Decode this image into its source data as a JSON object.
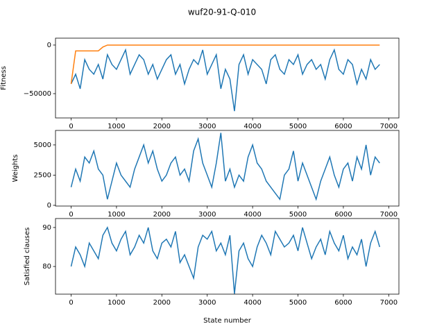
{
  "title": "wuf20-91-Q-010",
  "chart_data": [
    {
      "type": "line",
      "ylabel": "Fitness",
      "x": [
        0,
        100,
        200,
        300,
        400,
        500,
        600,
        700,
        800,
        900,
        1000,
        1100,
        1200,
        1300,
        1400,
        1500,
        1600,
        1700,
        1800,
        1900,
        2000,
        2100,
        2200,
        2300,
        2400,
        2500,
        2600,
        2700,
        2800,
        2900,
        3000,
        3100,
        3200,
        3300,
        3400,
        3500,
        3600,
        3700,
        3800,
        3900,
        4000,
        4100,
        4200,
        4300,
        4400,
        4500,
        4600,
        4700,
        4800,
        4900,
        5000,
        5100,
        5200,
        5300,
        5400,
        5500,
        5600,
        5700,
        5800,
        5900,
        6000,
        6100,
        6200,
        6300,
        6400,
        6500,
        6600,
        6700,
        6800
      ],
      "series": [
        {
          "color": "#1f77b4",
          "values": [
            -40000,
            -30000,
            -45000,
            -15000,
            -25000,
            -30000,
            -20000,
            -35000,
            -10000,
            -20000,
            -25000,
            -15000,
            -5000,
            -30000,
            -20000,
            -10000,
            -15000,
            -30000,
            -20000,
            -35000,
            -25000,
            -15000,
            -10000,
            -30000,
            -20000,
            -40000,
            -25000,
            -15000,
            -20000,
            -5000,
            -30000,
            -20000,
            -10000,
            -45000,
            -25000,
            -35000,
            -68000,
            -20000,
            -10000,
            -30000,
            -15000,
            -20000,
            -25000,
            -40000,
            -15000,
            -10000,
            -25000,
            -30000,
            -15000,
            -20000,
            -10000,
            -30000,
            -20000,
            -15000,
            -25000,
            -20000,
            -35000,
            -15000,
            -5000,
            -25000,
            -30000,
            -15000,
            -20000,
            -40000,
            -25000,
            -35000,
            -15000,
            -25000,
            -20000
          ]
        },
        {
          "color": "#ff7f0e",
          "values": [
            -40000,
            -6000,
            -6000,
            -6000,
            -6000,
            -6000,
            -6000,
            -2000,
            0,
            0,
            0,
            0,
            0,
            0,
            0,
            0,
            0,
            0,
            0,
            0,
            0,
            0,
            0,
            0,
            0,
            0,
            0,
            0,
            0,
            0,
            0,
            0,
            0,
            0,
            0,
            0,
            0,
            0,
            0,
            0,
            0,
            0,
            0,
            0,
            0,
            0,
            0,
            0,
            0,
            0,
            0,
            0,
            0,
            0,
            0,
            0,
            0,
            0,
            0,
            0,
            0,
            0,
            0,
            0,
            0,
            0,
            0,
            0,
            0
          ]
        }
      ],
      "xlim": [
        -344,
        7224
      ],
      "xticks": [
        0,
        1000,
        2000,
        3000,
        4000,
        5000,
        6000,
        7000
      ],
      "ylim": [
        -75000,
        7100
      ],
      "yticks": [
        {
          "value": -50000,
          "label": "−50000"
        },
        0
      ]
    },
    {
      "type": "line",
      "ylabel": "Weights",
      "x": [
        0,
        100,
        200,
        300,
        400,
        500,
        600,
        700,
        800,
        900,
        1000,
        1100,
        1200,
        1300,
        1400,
        1500,
        1600,
        1700,
        1800,
        1900,
        2000,
        2100,
        2200,
        2300,
        2400,
        2500,
        2600,
        2700,
        2800,
        2900,
        3000,
        3100,
        3200,
        3300,
        3400,
        3500,
        3600,
        3700,
        3800,
        3900,
        4000,
        4100,
        4200,
        4300,
        4400,
        4500,
        4600,
        4700,
        4800,
        4900,
        5000,
        5100,
        5200,
        5300,
        5400,
        5500,
        5600,
        5700,
        5800,
        5900,
        6000,
        6100,
        6200,
        6300,
        6400,
        6500,
        6600,
        6700,
        6800
      ],
      "series": [
        {
          "color": "#1f77b4",
          "values": [
            1500,
            3000,
            2000,
            4000,
            3500,
            4500,
            3000,
            2500,
            500,
            2000,
            3500,
            2500,
            2000,
            1500,
            3000,
            4000,
            5000,
            3500,
            4500,
            3000,
            2000,
            2500,
            3500,
            4000,
            2500,
            3000,
            2000,
            4500,
            5500,
            3500,
            2500,
            1500,
            3500,
            6000,
            2000,
            3000,
            1500,
            2500,
            2000,
            4000,
            5000,
            3500,
            3000,
            2000,
            1500,
            1000,
            500,
            2500,
            3000,
            4500,
            2000,
            3500,
            2500,
            1500,
            500,
            2000,
            3000,
            4000,
            2500,
            1500,
            3000,
            3500,
            2000,
            4000,
            3000,
            5000,
            2500,
            4000,
            3500
          ]
        }
      ],
      "xlim": [
        -344,
        7224
      ],
      "xticks": [
        0,
        1000,
        2000,
        3000,
        4000,
        5000,
        6000,
        7000
      ],
      "ylim": [
        -60,
        6200
      ],
      "yticks": [
        0,
        2500,
        5000
      ]
    },
    {
      "type": "line",
      "ylabel": "Satisfied clauses",
      "xlabel": "State number",
      "x": [
        0,
        100,
        200,
        300,
        400,
        500,
        600,
        700,
        800,
        900,
        1000,
        1100,
        1200,
        1300,
        1400,
        1500,
        1600,
        1700,
        1800,
        1900,
        2000,
        2100,
        2200,
        2300,
        2400,
        2500,
        2600,
        2700,
        2800,
        2900,
        3000,
        3100,
        3200,
        3300,
        3400,
        3500,
        3600,
        3700,
        3800,
        3900,
        4000,
        4100,
        4200,
        4300,
        4400,
        4500,
        4600,
        4700,
        4800,
        4900,
        5000,
        5100,
        5200,
        5300,
        5400,
        5500,
        5600,
        5700,
        5800,
        5900,
        6000,
        6100,
        6200,
        6300,
        6400,
        6500,
        6600,
        6700,
        6800
      ],
      "series": [
        {
          "color": "#1f77b4",
          "values": [
            80,
            85,
            83,
            80,
            86,
            84,
            82,
            88,
            90,
            86,
            84,
            87,
            89,
            83,
            85,
            88,
            86,
            90,
            84,
            82,
            86,
            87,
            85,
            89,
            81,
            83,
            80,
            77,
            85,
            88,
            87,
            89,
            84,
            86,
            83,
            88,
            73,
            84,
            86,
            82,
            80,
            85,
            88,
            86,
            83,
            89,
            87,
            85,
            86,
            88,
            84,
            90,
            86,
            82,
            85,
            87,
            83,
            89,
            86,
            84,
            88,
            82,
            85,
            83,
            87,
            80,
            86,
            89,
            85
          ]
        }
      ],
      "xlim": [
        -344,
        7224
      ],
      "xticks": [
        0,
        1000,
        2000,
        3000,
        4000,
        5000,
        6000,
        7000
      ],
      "ylim": [
        72.9,
        92.3
      ],
      "yticks": [
        80,
        90
      ]
    }
  ]
}
